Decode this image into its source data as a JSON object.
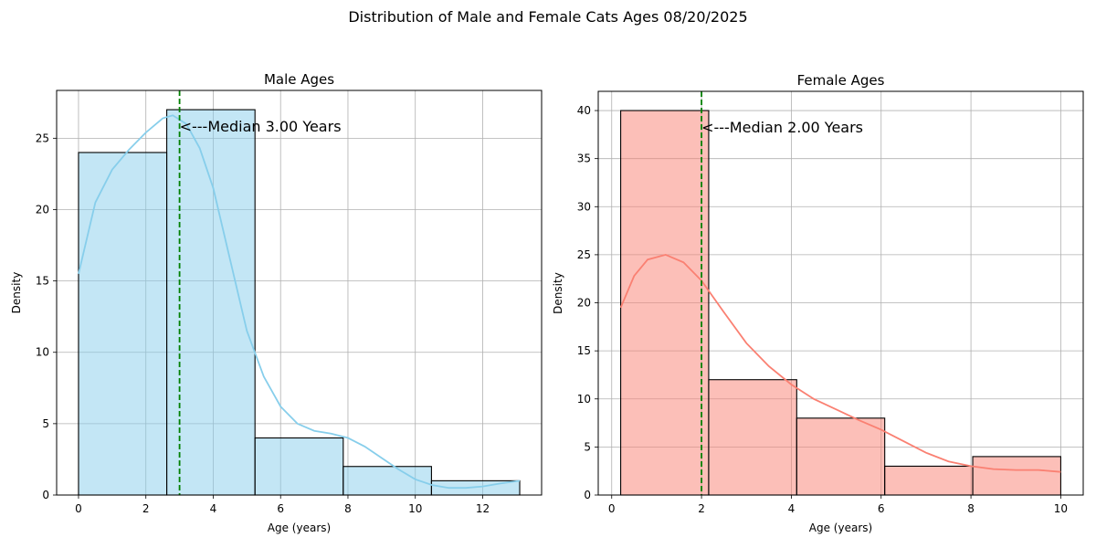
{
  "figure": {
    "suptitle": "Distribution of Male and Female Cats Ages 08/20/2025"
  },
  "chart_data": [
    {
      "type": "bar",
      "title": "Male Ages",
      "xlabel": "Age (years)",
      "ylabel": "Density",
      "bin_edges": [
        0,
        2.62,
        5.24,
        7.86,
        10.48,
        13.1
      ],
      "values": [
        24,
        27,
        4,
        2,
        1
      ],
      "xlim": [
        -0.65,
        13.75
      ],
      "ylim": [
        0,
        28.35
      ],
      "xticks": [
        0,
        2,
        4,
        6,
        8,
        10,
        12
      ],
      "yticks": [
        0,
        5,
        10,
        15,
        20,
        25
      ],
      "grid": true,
      "bar_color": "#87CEEB",
      "bar_edge_color": "#000000",
      "kde": {
        "color": "#87CEEB",
        "x": [
          0,
          0.5,
          1.0,
          1.5,
          2.0,
          2.5,
          2.8,
          3.2,
          3.6,
          4.0,
          4.5,
          5.0,
          5.5,
          6.0,
          6.5,
          7.0,
          7.5,
          8.0,
          8.5,
          9.0,
          9.5,
          10.0,
          10.5,
          11.0,
          11.5,
          12.0,
          12.5,
          13.1
        ],
        "y": [
          15.5,
          20.5,
          22.8,
          24.2,
          25.4,
          26.4,
          26.6,
          26.0,
          24.3,
          21.5,
          16.5,
          11.5,
          8.3,
          6.2,
          5.0,
          4.5,
          4.3,
          4.0,
          3.4,
          2.6,
          1.8,
          1.1,
          0.7,
          0.5,
          0.5,
          0.6,
          0.8,
          1.0
        ]
      },
      "median": {
        "value": 3.0,
        "color": "#008000",
        "label": "<---Median 3.00 Years"
      }
    },
    {
      "type": "bar",
      "title": "Female Ages",
      "xlabel": "Age (years)",
      "ylabel": "Density",
      "bin_edges": [
        0.2,
        2.16,
        4.12,
        6.08,
        8.04,
        10.0
      ],
      "values": [
        40,
        12,
        8,
        3,
        4
      ],
      "xlim": [
        -0.3,
        10.5
      ],
      "ylim": [
        0,
        42
      ],
      "xticks": [
        0,
        2,
        4,
        6,
        8,
        10
      ],
      "yticks": [
        0,
        5,
        10,
        15,
        20,
        25,
        30,
        35,
        40
      ],
      "grid": true,
      "bar_color": "#FA8072",
      "bar_edge_color": "#000000",
      "kde": {
        "color": "#FA8072",
        "x": [
          0.2,
          0.5,
          0.8,
          1.2,
          1.6,
          2.0,
          2.5,
          3.0,
          3.5,
          4.0,
          4.5,
          5.0,
          5.5,
          6.0,
          6.5,
          7.0,
          7.5,
          8.0,
          8.5,
          9.0,
          9.5,
          10.0
        ],
        "y": [
          19.5,
          22.8,
          24.5,
          25.0,
          24.2,
          22.3,
          19.0,
          15.8,
          13.4,
          11.5,
          10.0,
          8.9,
          7.8,
          6.8,
          5.6,
          4.4,
          3.5,
          3.0,
          2.7,
          2.6,
          2.6,
          2.4
        ]
      },
      "median": {
        "value": 2.0,
        "color": "#008000",
        "label": "<---Median 2.00 Years"
      }
    }
  ]
}
